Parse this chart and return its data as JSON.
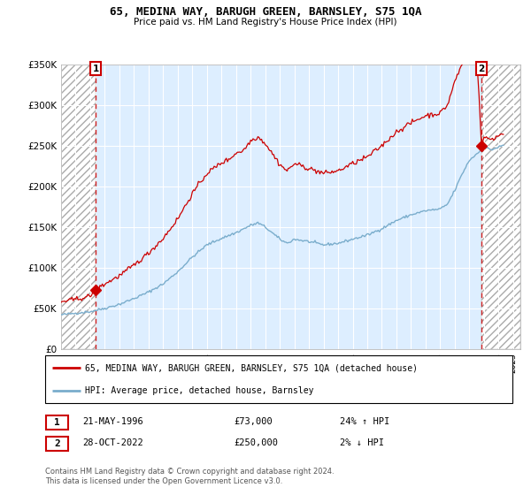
{
  "title": "65, MEDINA WAY, BARUGH GREEN, BARNSLEY, S75 1QA",
  "subtitle": "Price paid vs. HM Land Registry's House Price Index (HPI)",
  "legend_line1": "65, MEDINA WAY, BARUGH GREEN, BARNSLEY, S75 1QA (detached house)",
  "legend_line2": "HPI: Average price, detached house, Barnsley",
  "marker1_label": "1",
  "marker1_date": "21-MAY-1996",
  "marker1_price": "£73,000",
  "marker1_hpi": "24% ↑ HPI",
  "marker2_label": "2",
  "marker2_date": "28-OCT-2022",
  "marker2_price": "£250,000",
  "marker2_hpi": "2% ↓ HPI",
  "footer": "Contains HM Land Registry data © Crown copyright and database right 2024.\nThis data is licensed under the Open Government Licence v3.0.",
  "red_color": "#cc0000",
  "blue_color": "#7aadcc",
  "plot_bg": "#ddeeff",
  "shade_hatch": "////",
  "shade_color": "#bbbbbb",
  "grid_color": "#ffffff",
  "ylim": [
    0,
    350000
  ],
  "yticks": [
    0,
    50000,
    100000,
    150000,
    200000,
    250000,
    300000,
    350000
  ],
  "ytick_labels": [
    "£0",
    "£50K",
    "£100K",
    "£150K",
    "£200K",
    "£250K",
    "£300K",
    "£350K"
  ],
  "xmin": 1994.0,
  "xmax": 2025.5,
  "shade1_start": 1994.0,
  "shade1_end": 1996.38,
  "shade2_start": 2022.83,
  "shade2_end": 2025.5,
  "marker1_x": 1996.38,
  "marker1_y": 73000,
  "marker2_x": 2022.83,
  "marker2_y": 250000
}
